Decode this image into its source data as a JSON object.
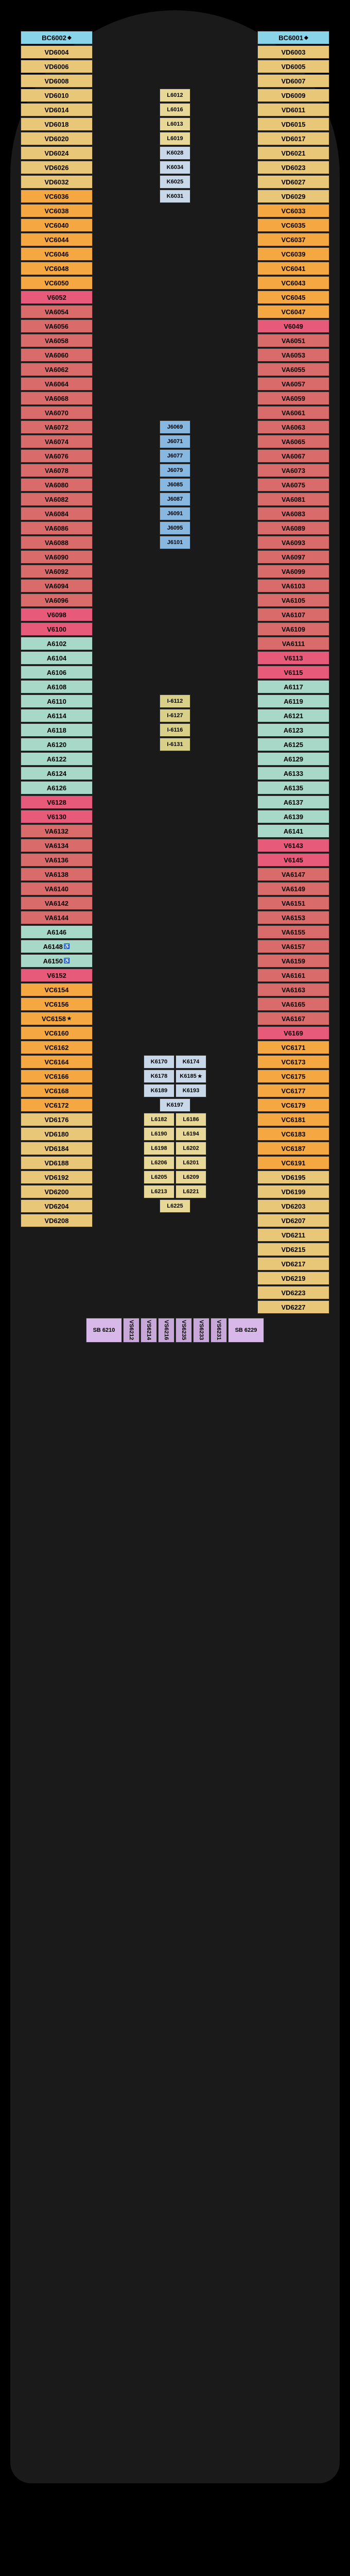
{
  "deck_name": "Deck 6",
  "colors": {
    "BC": "#89d4e8",
    "VD": "#e8c878",
    "VC": "#f5a742",
    "VA": "#d96b6b",
    "V6": "#e85a7a",
    "A6": "#a8d8c8",
    "I6": "#d8d088",
    "L6": "#e8d898",
    "K6": "#c8d8e8",
    "J6": "#88b8e0",
    "VS": "#c8a8d8",
    "SB": "#d8b8e8",
    "corridor": "#d8d8d8",
    "hull": "#1a1a1a",
    "text": "#000000"
  },
  "cabins_left": [
    {
      "id": "BC6002",
      "cat": "BC",
      "sym": "◆"
    },
    {
      "id": "VD6004",
      "cat": "VD"
    },
    {
      "id": "VD6006",
      "cat": "VD"
    },
    {
      "id": "VD6008",
      "cat": "VD"
    },
    {
      "id": "VD6010",
      "cat": "VD"
    },
    {
      "id": "VD6014",
      "cat": "VD"
    },
    {
      "id": "VD6018",
      "cat": "VD"
    },
    {
      "id": "VD6020",
      "cat": "VD"
    },
    {
      "id": "VD6024",
      "cat": "VD"
    },
    {
      "id": "VD6026",
      "cat": "VD"
    },
    {
      "id": "VD6032",
      "cat": "VD"
    },
    {
      "id": "VC6036",
      "cat": "VC"
    },
    {
      "id": "VC6038",
      "cat": "VC"
    },
    {
      "id": "VC6040",
      "cat": "VC"
    },
    {
      "id": "VC6044",
      "cat": "VC"
    },
    {
      "id": "VC6046",
      "cat": "VC"
    },
    {
      "id": "VC6048",
      "cat": "VC"
    },
    {
      "id": "VC6050",
      "cat": "VC"
    },
    {
      "id": "V6052",
      "cat": "V6"
    },
    {
      "id": "VA6054",
      "cat": "VA"
    },
    {
      "id": "VA6056",
      "cat": "VA"
    },
    {
      "id": "VA6058",
      "cat": "VA"
    },
    {
      "id": "VA6060",
      "cat": "VA"
    },
    {
      "id": "VA6062",
      "cat": "VA"
    },
    {
      "id": "VA6064",
      "cat": "VA"
    },
    {
      "id": "VA6068",
      "cat": "VA"
    },
    {
      "id": "VA6070",
      "cat": "VA"
    },
    {
      "id": "VA6072",
      "cat": "VA"
    },
    {
      "id": "VA6074",
      "cat": "VA"
    },
    {
      "id": "VA6076",
      "cat": "VA"
    },
    {
      "id": "VA6078",
      "cat": "VA"
    },
    {
      "id": "VA6080",
      "cat": "VA"
    },
    {
      "id": "VA6082",
      "cat": "VA"
    },
    {
      "id": "VA6084",
      "cat": "VA"
    },
    {
      "id": "VA6086",
      "cat": "VA"
    },
    {
      "id": "VA6088",
      "cat": "VA"
    },
    {
      "id": "VA6090",
      "cat": "VA"
    },
    {
      "id": "VA6092",
      "cat": "VA"
    },
    {
      "id": "VA6094",
      "cat": "VA"
    },
    {
      "id": "VA6096",
      "cat": "VA"
    },
    {
      "id": "V6098",
      "cat": "V6"
    },
    {
      "id": "V6100",
      "cat": "V6"
    },
    {
      "id": "A6102",
      "cat": "A6"
    },
    {
      "id": "A6104",
      "cat": "A6"
    },
    {
      "id": "A6106",
      "cat": "A6"
    },
    {
      "id": "A6108",
      "cat": "A6"
    },
    {
      "id": "A6110",
      "cat": "A6"
    },
    {
      "id": "A6114",
      "cat": "A6"
    },
    {
      "id": "A6118",
      "cat": "A6"
    },
    {
      "id": "A6120",
      "cat": "A6"
    },
    {
      "id": "A6122",
      "cat": "A6"
    },
    {
      "id": "A6124",
      "cat": "A6"
    },
    {
      "id": "A6126",
      "cat": "A6"
    },
    {
      "id": "V6128",
      "cat": "V6"
    },
    {
      "id": "V6130",
      "cat": "V6"
    },
    {
      "id": "VA6132",
      "cat": "VA"
    },
    {
      "id": "VA6134",
      "cat": "VA"
    },
    {
      "id": "VA6136",
      "cat": "VA"
    },
    {
      "id": "VA6138",
      "cat": "VA"
    },
    {
      "id": "VA6140",
      "cat": "VA"
    },
    {
      "id": "VA6142",
      "cat": "VA"
    },
    {
      "id": "VA6144",
      "cat": "VA"
    },
    {
      "id": "A6146",
      "cat": "A6"
    },
    {
      "id": "A6148",
      "cat": "A6",
      "sym": "♿"
    },
    {
      "id": "A6150",
      "cat": "A6",
      "sym": "♿"
    },
    {
      "id": "V6152",
      "cat": "V6"
    },
    {
      "id": "VC6154",
      "cat": "VC"
    },
    {
      "id": "VC6156",
      "cat": "VC"
    },
    {
      "id": "VC6158",
      "cat": "VC",
      "sym": "★"
    },
    {
      "id": "VC6160",
      "cat": "VC"
    },
    {
      "id": "VC6162",
      "cat": "VC"
    },
    {
      "id": "VC6164",
      "cat": "VC"
    },
    {
      "id": "VC6166",
      "cat": "VC"
    },
    {
      "id": "VC6168",
      "cat": "VC"
    },
    {
      "id": "VC6172",
      "cat": "VC"
    },
    {
      "id": "VD6176",
      "cat": "VD"
    },
    {
      "id": "VD6180",
      "cat": "VD"
    },
    {
      "id": "VD6184",
      "cat": "VD"
    },
    {
      "id": "VD6188",
      "cat": "VD"
    },
    {
      "id": "VD6192",
      "cat": "VD"
    },
    {
      "id": "VD6200",
      "cat": "VD"
    },
    {
      "id": "VD6204",
      "cat": "VD"
    },
    {
      "id": "VD6208",
      "cat": "VD"
    }
  ],
  "cabins_right": [
    {
      "id": "BC6001",
      "cat": "BC",
      "sym": "◆"
    },
    {
      "id": "VD6003",
      "cat": "VD"
    },
    {
      "id": "VD6005",
      "cat": "VD"
    },
    {
      "id": "VD6007",
      "cat": "VD"
    },
    {
      "id": "VD6009",
      "cat": "VD"
    },
    {
      "id": "VD6011",
      "cat": "VD"
    },
    {
      "id": "VD6015",
      "cat": "VD"
    },
    {
      "id": "VD6017",
      "cat": "VD"
    },
    {
      "id": "VD6021",
      "cat": "VD"
    },
    {
      "id": "VD6023",
      "cat": "VD"
    },
    {
      "id": "VD6027",
      "cat": "VD"
    },
    {
      "id": "VD6029",
      "cat": "VD"
    },
    {
      "id": "VC6033",
      "cat": "VC"
    },
    {
      "id": "VC6035",
      "cat": "VC"
    },
    {
      "id": "VC6037",
      "cat": "VC"
    },
    {
      "id": "VC6039",
      "cat": "VC"
    },
    {
      "id": "VC6041",
      "cat": "VC"
    },
    {
      "id": "VC6043",
      "cat": "VC"
    },
    {
      "id": "VC6045",
      "cat": "VC"
    },
    {
      "id": "VC6047",
      "cat": "VC"
    },
    {
      "id": "V6049",
      "cat": "V6"
    },
    {
      "id": "VA6051",
      "cat": "VA"
    },
    {
      "id": "VA6053",
      "cat": "VA"
    },
    {
      "id": "VA6055",
      "cat": "VA"
    },
    {
      "id": "VA6057",
      "cat": "VA"
    },
    {
      "id": "VA6059",
      "cat": "VA"
    },
    {
      "id": "VA6061",
      "cat": "VA"
    },
    {
      "id": "VA6063",
      "cat": "VA"
    },
    {
      "id": "VA6065",
      "cat": "VA"
    },
    {
      "id": "VA6067",
      "cat": "VA"
    },
    {
      "id": "VA6073",
      "cat": "VA"
    },
    {
      "id": "VA6075",
      "cat": "VA"
    },
    {
      "id": "VA6081",
      "cat": "VA"
    },
    {
      "id": "VA6083",
      "cat": "VA"
    },
    {
      "id": "VA6089",
      "cat": "VA"
    },
    {
      "id": "VA6093",
      "cat": "VA"
    },
    {
      "id": "VA6097",
      "cat": "VA"
    },
    {
      "id": "VA6099",
      "cat": "VA"
    },
    {
      "id": "VA6103",
      "cat": "VA"
    },
    {
      "id": "VA6105",
      "cat": "VA"
    },
    {
      "id": "VA6107",
      "cat": "VA"
    },
    {
      "id": "VA6109",
      "cat": "VA"
    },
    {
      "id": "VA6111",
      "cat": "VA"
    },
    {
      "id": "V6113",
      "cat": "V6"
    },
    {
      "id": "V6115",
      "cat": "V6"
    },
    {
      "id": "A6117",
      "cat": "A6"
    },
    {
      "id": "A6119",
      "cat": "A6"
    },
    {
      "id": "A6121",
      "cat": "A6"
    },
    {
      "id": "A6123",
      "cat": "A6"
    },
    {
      "id": "A6125",
      "cat": "A6"
    },
    {
      "id": "A6129",
      "cat": "A6"
    },
    {
      "id": "A6133",
      "cat": "A6"
    },
    {
      "id": "A6135",
      "cat": "A6"
    },
    {
      "id": "A6137",
      "cat": "A6"
    },
    {
      "id": "A6139",
      "cat": "A6"
    },
    {
      "id": "A6141",
      "cat": "A6"
    },
    {
      "id": "V6143",
      "cat": "V6"
    },
    {
      "id": "V6145",
      "cat": "V6"
    },
    {
      "id": "VA6147",
      "cat": "VA"
    },
    {
      "id": "VA6149",
      "cat": "VA"
    },
    {
      "id": "VA6151",
      "cat": "VA"
    },
    {
      "id": "VA6153",
      "cat": "VA"
    },
    {
      "id": "VA6155",
      "cat": "VA"
    },
    {
      "id": "VA6157",
      "cat": "VA"
    },
    {
      "id": "VA6159",
      "cat": "VA"
    },
    {
      "id": "VA6161",
      "cat": "VA"
    },
    {
      "id": "VA6163",
      "cat": "VA"
    },
    {
      "id": "VA6165",
      "cat": "VA"
    },
    {
      "id": "VA6167",
      "cat": "VA"
    },
    {
      "id": "V6169",
      "cat": "V6"
    },
    {
      "id": "VC6171",
      "cat": "VC"
    },
    {
      "id": "VC6173",
      "cat": "VC"
    },
    {
      "id": "VC6175",
      "cat": "VC"
    },
    {
      "id": "VC6177",
      "cat": "VC"
    },
    {
      "id": "VC6179",
      "cat": "VC"
    },
    {
      "id": "VC6181",
      "cat": "VC"
    },
    {
      "id": "VC6183",
      "cat": "VC"
    },
    {
      "id": "VC6187",
      "cat": "VC"
    },
    {
      "id": "VC6191",
      "cat": "VC"
    },
    {
      "id": "VD6195",
      "cat": "VD"
    },
    {
      "id": "VD6199",
      "cat": "VD"
    },
    {
      "id": "VD6203",
      "cat": "VD"
    },
    {
      "id": "VD6207",
      "cat": "VD"
    },
    {
      "id": "VD6211",
      "cat": "VD"
    },
    {
      "id": "VD6215",
      "cat": "VD"
    },
    {
      "id": "VD6217",
      "cat": "VD"
    },
    {
      "id": "VD6219",
      "cat": "VD"
    },
    {
      "id": "VD6223",
      "cat": "VD"
    },
    {
      "id": "VD6227",
      "cat": "VD"
    }
  ],
  "cabins_inner_fwd": [
    {
      "id": "L6012",
      "cat": "L6"
    },
    {
      "id": "L6016",
      "cat": "L6"
    },
    {
      "id": "L6013",
      "cat": "L6"
    },
    {
      "id": "L6019",
      "cat": "L6"
    },
    {
      "id": "K6028",
      "cat": "K6"
    },
    {
      "id": "K6034",
      "cat": "K6"
    },
    {
      "id": "K6025",
      "cat": "K6"
    },
    {
      "id": "K6031",
      "cat": "K6"
    }
  ],
  "cabins_inner_mid_j": [
    {
      "id": "J6069",
      "cat": "J6"
    },
    {
      "id": "J6071",
      "cat": "J6"
    },
    {
      "id": "J6077",
      "cat": "J6"
    },
    {
      "id": "J6079",
      "cat": "J6"
    },
    {
      "id": "J6085",
      "cat": "J6"
    },
    {
      "id": "J6087",
      "cat": "J6"
    },
    {
      "id": "J6091",
      "cat": "J6"
    },
    {
      "id": "J6095",
      "cat": "J6"
    },
    {
      "id": "J6101",
      "cat": "J6"
    }
  ],
  "cabins_inner_mid_i": [
    {
      "id": "I-6112",
      "cat": "I6"
    },
    {
      "id": "I-6127",
      "cat": "I6"
    },
    {
      "id": "I-6116",
      "cat": "I6"
    },
    {
      "id": "I-6131",
      "cat": "I6"
    }
  ],
  "cabins_inner_aft_k": [
    {
      "id": "K6170",
      "cat": "K6"
    },
    {
      "id": "K6174",
      "cat": "K6"
    },
    {
      "id": "K6178",
      "cat": "K6"
    },
    {
      "id": "K6185",
      "cat": "K6",
      "sym": "★"
    },
    {
      "id": "K6189",
      "cat": "K6"
    },
    {
      "id": "K6193",
      "cat": "K6"
    },
    {
      "id": "K6197",
      "cat": "K6"
    }
  ],
  "cabins_inner_aft_l": [
    {
      "id": "L6182",
      "cat": "L6"
    },
    {
      "id": "L6186",
      "cat": "L6"
    },
    {
      "id": "L6190",
      "cat": "L6"
    },
    {
      "id": "L6194",
      "cat": "L6"
    },
    {
      "id": "L6198",
      "cat": "L6"
    },
    {
      "id": "L6202",
      "cat": "L6"
    },
    {
      "id": "L6206",
      "cat": "L6"
    },
    {
      "id": "L6201",
      "cat": "L6"
    },
    {
      "id": "L6205",
      "cat": "L6"
    },
    {
      "id": "L6209",
      "cat": "L6"
    },
    {
      "id": "L6213",
      "cat": "L6"
    },
    {
      "id": "L6221",
      "cat": "L6"
    },
    {
      "id": "L6225",
      "cat": "L6"
    }
  ],
  "cabins_stern": [
    {
      "id": "SB 6210",
      "cat": "SB"
    },
    {
      "id": "VS6212",
      "cat": "VS"
    },
    {
      "id": "VS6214",
      "cat": "VS"
    },
    {
      "id": "VS6216",
      "cat": "VS"
    },
    {
      "id": "VS6235",
      "cat": "VS"
    },
    {
      "id": "VS6233",
      "cat": "VS"
    },
    {
      "id": "VS6231",
      "cat": "VS"
    },
    {
      "id": "SB 6229",
      "cat": "SB"
    }
  ]
}
